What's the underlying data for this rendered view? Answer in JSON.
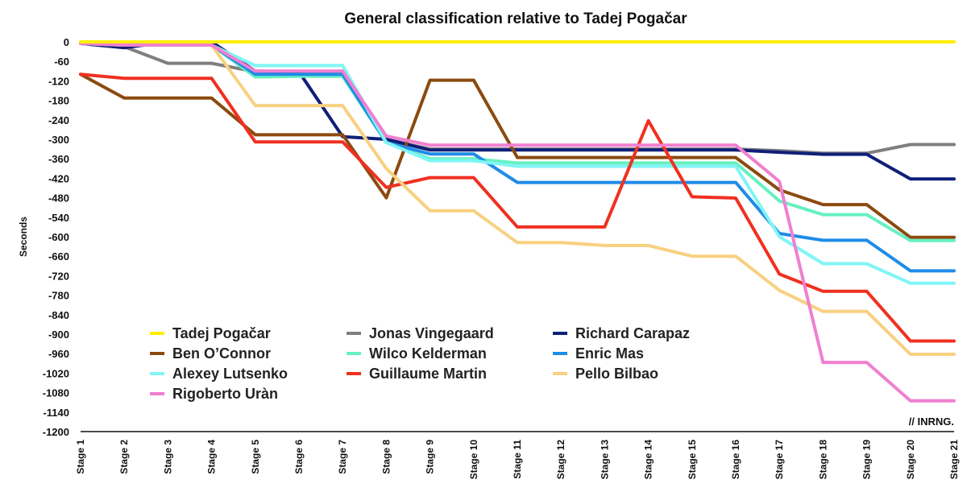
{
  "chart_data": {
    "type": "line",
    "title": "General classification relative to Tadej Pogačar",
    "ylabel": "Seconds",
    "xlabel": "",
    "credit": "// INRNG.",
    "ylim": [
      -1200,
      0
    ],
    "yticks": [
      0,
      -60,
      -120,
      -180,
      -240,
      -300,
      -360,
      -420,
      -480,
      -540,
      -600,
      -660,
      -720,
      -780,
      -840,
      -900,
      -960,
      -1020,
      -1080,
      -1140,
      -1200
    ],
    "ytick_labels": [
      "0",
      "-60",
      "-120",
      "-180",
      "-240",
      "-300",
      "-360",
      "-420",
      "-480",
      "-540",
      "-600",
      "-660",
      "-720",
      "-780",
      "-840",
      "-900",
      "-960",
      "-1020",
      "-1080",
      "-1140",
      "-1200"
    ],
    "categories": [
      "Stage 1",
      "Stage 2",
      "Stage 3",
      "Stage 4",
      "Stage 5",
      "Stage 6",
      "Stage 7",
      "Stage 8",
      "Stage 9",
      "Stage 10",
      "Stage 11",
      "Stage 12",
      "Stage 13",
      "Stage 14",
      "Stage 15",
      "Stage 16",
      "Stage 17",
      "Stage 18",
      "Stage 19",
      "Stage 20",
      "Stage 21"
    ],
    "grid": false,
    "legend_position": "bottom-left",
    "series": [
      {
        "name": "Tadej Pogačar",
        "color": "#ffee00",
        "values": [
          0,
          0,
          0,
          0,
          0,
          0,
          0,
          0,
          0,
          0,
          0,
          0,
          0,
          0,
          0,
          0,
          0,
          0,
          0,
          0,
          0
        ]
      },
      {
        "name": "Jonas Vingegaard",
        "color": "#7f7f7f",
        "values": [
          -5,
          -15,
          -66,
          -66,
          -92,
          -92,
          -92,
          -300,
          -330,
          -330,
          -330,
          -330,
          -330,
          -330,
          -330,
          -330,
          -335,
          -343,
          -343,
          -316,
          -316
        ]
      },
      {
        "name": "Richard Carapaz",
        "color": "#0f1f78",
        "values": [
          -5,
          -18,
          0,
          0,
          -90,
          -92,
          -292,
          -300,
          -333,
          -333,
          -333,
          -333,
          -333,
          -333,
          -333,
          -333,
          -340,
          -346,
          -346,
          -422,
          -422
        ]
      },
      {
        "name": "Ben O’Connor",
        "color": "#8b4a0f",
        "values": [
          -100,
          -173,
          -173,
          -173,
          -286,
          -286,
          -286,
          -480,
          -118,
          -118,
          -356,
          -356,
          -356,
          -356,
          -356,
          -356,
          -456,
          -501,
          -501,
          -602,
          -602
        ]
      },
      {
        "name": "Wilco Kelderman",
        "color": "#66f0c0",
        "values": [
          -5,
          -10,
          -10,
          -10,
          -108,
          -106,
          -106,
          -310,
          -360,
          -360,
          -373,
          -373,
          -373,
          -373,
          -373,
          -373,
          -490,
          -532,
          -532,
          -612,
          -612
        ]
      },
      {
        "name": "Enric Mas",
        "color": "#1f8ce8",
        "values": [
          -5,
          -10,
          -10,
          -10,
          -100,
          -100,
          -100,
          -310,
          -345,
          -345,
          -433,
          -433,
          -433,
          -433,
          -433,
          -433,
          -590,
          -611,
          -611,
          -705,
          -705
        ]
      },
      {
        "name": "Alexey Lutsenko",
        "color": "#80f5f5",
        "values": [
          -5,
          -10,
          -10,
          -10,
          -73,
          -73,
          -73,
          -310,
          -366,
          -366,
          -383,
          -383,
          -383,
          -383,
          -383,
          -383,
          -600,
          -683,
          -683,
          -743,
          -743
        ]
      },
      {
        "name": "Guillaume Martin",
        "color": "#f03020",
        "values": [
          -100,
          -112,
          -112,
          -112,
          -308,
          -308,
          -308,
          -448,
          -418,
          -418,
          -570,
          -570,
          -570,
          -243,
          -477,
          -481,
          -715,
          -768,
          -768,
          -921,
          -921
        ]
      },
      {
        "name": "Pello Bilbao",
        "color": "#f8d080",
        "values": [
          -5,
          -10,
          -10,
          -10,
          -196,
          -196,
          -196,
          -390,
          -520,
          -520,
          -618,
          -618,
          -627,
          -627,
          -660,
          -660,
          -765,
          -830,
          -830,
          -962,
          -962
        ]
      },
      {
        "name": "Rigoberto Uràn",
        "color": "#f07fd0",
        "values": [
          -5,
          -10,
          -10,
          -10,
          -90,
          -90,
          -90,
          -290,
          -318,
          -318,
          -318,
          -318,
          -318,
          -318,
          -318,
          -318,
          -430,
          -987,
          -987,
          -1105,
          -1105
        ]
      }
    ]
  }
}
